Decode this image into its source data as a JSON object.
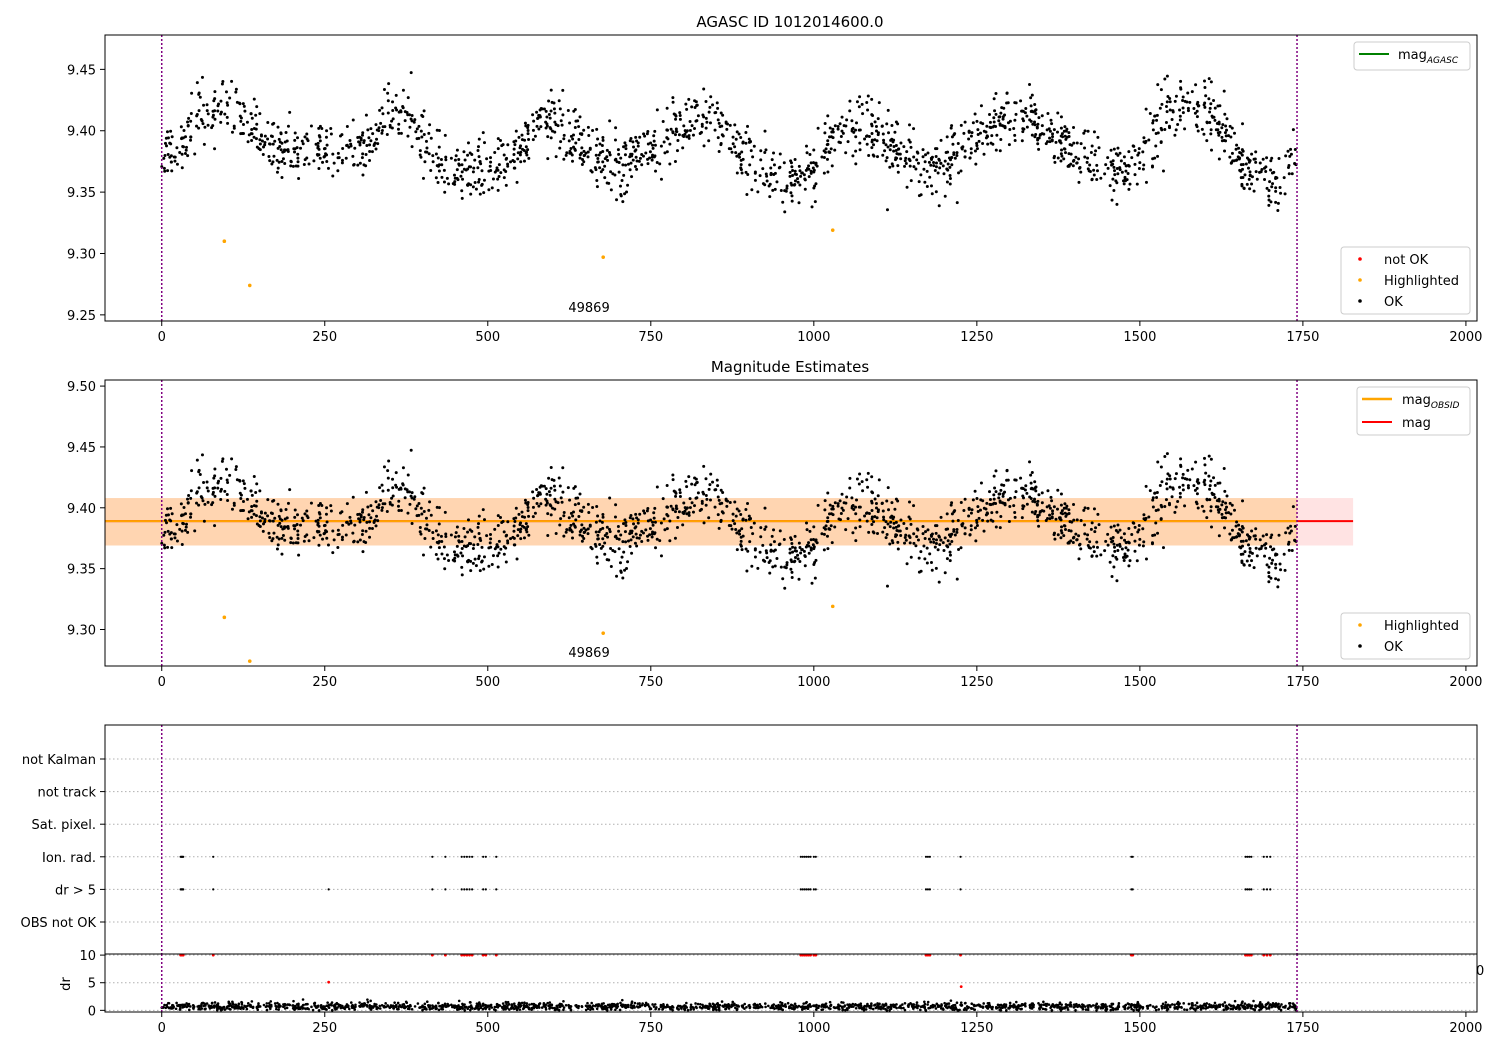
{
  "chart_data": [
    {
      "type": "scatter",
      "title": "AGASC ID 1012014600.0",
      "xlim": [
        -87,
        2017
      ],
      "ylim": [
        9.245,
        9.478
      ],
      "xticks": [
        0,
        250,
        500,
        750,
        1000,
        1250,
        1500,
        1750,
        2000
      ],
      "xtick_labels": [
        "0",
        "250",
        "500",
        "750",
        "1000",
        "1250",
        "1500",
        "1750",
        "2000"
      ],
      "yticks": [
        9.25,
        9.3,
        9.35,
        9.4,
        9.45
      ],
      "ytick_labels": [
        "9.25",
        "9.30",
        "9.35",
        "9.40",
        "9.45"
      ],
      "vlines": [
        0,
        1741
      ],
      "annotation": {
        "text": "49869",
        "x": 870
      },
      "legends": [
        {
          "position": "upper right",
          "entries": [
            {
              "label": "mag",
              "sub": "AGASC",
              "color": "#008000",
              "marker": "line"
            }
          ]
        },
        {
          "position": "lower right",
          "entries": [
            {
              "label": "not OK",
              "color": "#ff0000",
              "marker": "dot"
            },
            {
              "label": "Highlighted",
              "color": "#ffa500",
              "marker": "dot"
            },
            {
              "label": "OK",
              "color": "#000000",
              "marker": "dot"
            }
          ]
        }
      ],
      "series": [
        {
          "name": "OK",
          "color": "#000000",
          "trend": {
            "x": [
              0,
              90,
              200,
              300,
              360,
              450,
              500,
              600,
              700,
              820,
              970,
              1060,
              1180,
              1310,
              1470,
              1570,
              1700,
              1740
            ],
            "y": [
              9.378,
              9.418,
              9.382,
              9.386,
              9.415,
              9.368,
              9.368,
              9.405,
              9.372,
              9.407,
              9.36,
              9.402,
              9.37,
              9.412,
              9.365,
              9.422,
              9.36,
              9.375
            ]
          },
          "scatter": 0.012,
          "x_range": [
            0,
            1741
          ],
          "n": 1800
        },
        {
          "name": "Highlighted",
          "color": "#ffa500",
          "x": [
            96,
            135,
            677,
            1029
          ],
          "y": [
            9.31,
            9.274,
            9.297,
            9.319
          ]
        }
      ]
    },
    {
      "type": "scatter",
      "title": "Magnitude Estimates",
      "xlim": [
        -87,
        2017
      ],
      "ylim": [
        9.27,
        9.505
      ],
      "xticks": [
        0,
        250,
        500,
        750,
        1000,
        1250,
        1500,
        1750,
        2000
      ],
      "xtick_labels": [
        "0",
        "250",
        "500",
        "750",
        "1000",
        "1250",
        "1500",
        "1750",
        "2000"
      ],
      "yticks": [
        9.3,
        9.35,
        9.4,
        9.45,
        9.5
      ],
      "ytick_labels": [
        "9.30",
        "9.35",
        "9.40",
        "9.45",
        "9.50"
      ],
      "vlines": [
        0,
        1741
      ],
      "annotation": {
        "text": "49869",
        "x": 870
      },
      "bands": [
        {
          "x": [
            -87,
            1827
          ],
          "y": [
            9.369,
            9.408
          ],
          "color": "#ff0000",
          "opacity": 0.11
        },
        {
          "x": [
            -87,
            1741
          ],
          "y": [
            9.369,
            9.408
          ],
          "color": "#ffa500",
          "opacity": 0.22
        }
      ],
      "lines": [
        {
          "name": "mag",
          "x": [
            -87,
            1827
          ],
          "y": [
            9.389,
            9.389
          ],
          "color": "#ff0000"
        },
        {
          "name": "mag_OBSID",
          "x": [
            -87,
            1741
          ],
          "y": [
            9.389,
            9.389
          ],
          "color": "#ffa500"
        }
      ],
      "legends": [
        {
          "position": "upper right",
          "entries": [
            {
              "label": "mag",
              "sub": "OBSID",
              "color": "#ffa500",
              "marker": "line"
            },
            {
              "label": "mag",
              "color": "#ff0000",
              "marker": "line"
            }
          ]
        },
        {
          "position": "lower right",
          "entries": [
            {
              "label": "Highlighted",
              "color": "#ffa500",
              "marker": "dot"
            },
            {
              "label": "OK",
              "color": "#000000",
              "marker": "dot"
            }
          ]
        }
      ],
      "series": [
        {
          "name": "OK",
          "color": "#000000",
          "same_as_panel": 0
        },
        {
          "name": "Highlighted",
          "color": "#ffa500",
          "x": [
            96,
            135,
            677,
            1029
          ],
          "y": [
            9.31,
            9.274,
            9.297,
            9.319
          ]
        }
      ]
    },
    {
      "type": "scatter",
      "title": "",
      "xlim": [
        -87,
        2017
      ],
      "flag_rows": [
        "not Kalman",
        "not track",
        "Sat. pixel.",
        "Ion. rad.",
        "dr > 5",
        "OBS not OK"
      ],
      "grid": true,
      "vlines": [
        0,
        1741
      ],
      "flags": {
        "Ion. rad.": [
          29,
          30,
          31,
          32,
          33,
          79,
          415,
          435,
          460,
          464,
          468,
          472,
          476,
          493,
          497,
          513,
          980,
          983,
          986,
          989,
          992,
          995,
          1000,
          1003,
          1172,
          1175,
          1178,
          1225,
          1487,
          1489,
          1662,
          1665,
          1668,
          1671,
          1690,
          1695,
          1700
        ],
        "dr > 5": [
          29,
          30,
          31,
          32,
          33,
          79,
          256,
          415,
          435,
          460,
          464,
          468,
          472,
          476,
          493,
          497,
          513,
          980,
          983,
          986,
          989,
          992,
          995,
          1000,
          1003,
          1172,
          1175,
          1178,
          1225,
          1487,
          1489,
          1662,
          1665,
          1668,
          1671,
          1690,
          1695,
          1700
        ]
      }
    },
    {
      "type": "scatter",
      "ylabel": "dr",
      "xlim": [
        -87,
        2017
      ],
      "ylim": [
        -0.3,
        10.2
      ],
      "xticks": [
        0,
        250,
        500,
        750,
        1000,
        1250,
        1500,
        1750,
        2000
      ],
      "xtick_labels": [
        "0",
        "250",
        "500",
        "750",
        "1000",
        "1250",
        "1500",
        "1750",
        "2000"
      ],
      "yticks": [
        0,
        5,
        10
      ],
      "ytick_labels": [
        "0",
        "5",
        "10"
      ],
      "grid": true,
      "vlines": [
        0,
        1741
      ],
      "series": [
        {
          "name": "dr",
          "color": "#000000",
          "typical": 0.7,
          "x_range": [
            0,
            1741
          ],
          "n": 1800
        },
        {
          "name": "dr not OK",
          "color": "#ff0000",
          "x": [
            29,
            30,
            31,
            32,
            33,
            79,
            256,
            415,
            435,
            460,
            464,
            468,
            472,
            476,
            493,
            497,
            513,
            980,
            983,
            986,
            989,
            992,
            995,
            1000,
            1003,
            1172,
            1175,
            1178,
            1225,
            1226,
            1487,
            1489,
            1662,
            1665,
            1668,
            1671,
            1690,
            1695,
            1700
          ],
          "y": [
            10,
            10,
            10,
            10,
            10,
            10,
            5.1,
            10,
            10,
            10,
            10,
            10,
            10,
            10,
            10,
            10,
            10,
            10,
            10,
            10,
            10,
            10,
            10,
            10,
            10,
            10,
            10,
            10,
            10,
            4.3,
            10,
            10,
            10,
            10,
            10,
            10,
            10,
            10,
            10
          ]
        }
      ]
    }
  ],
  "stray_tick_label": "0"
}
